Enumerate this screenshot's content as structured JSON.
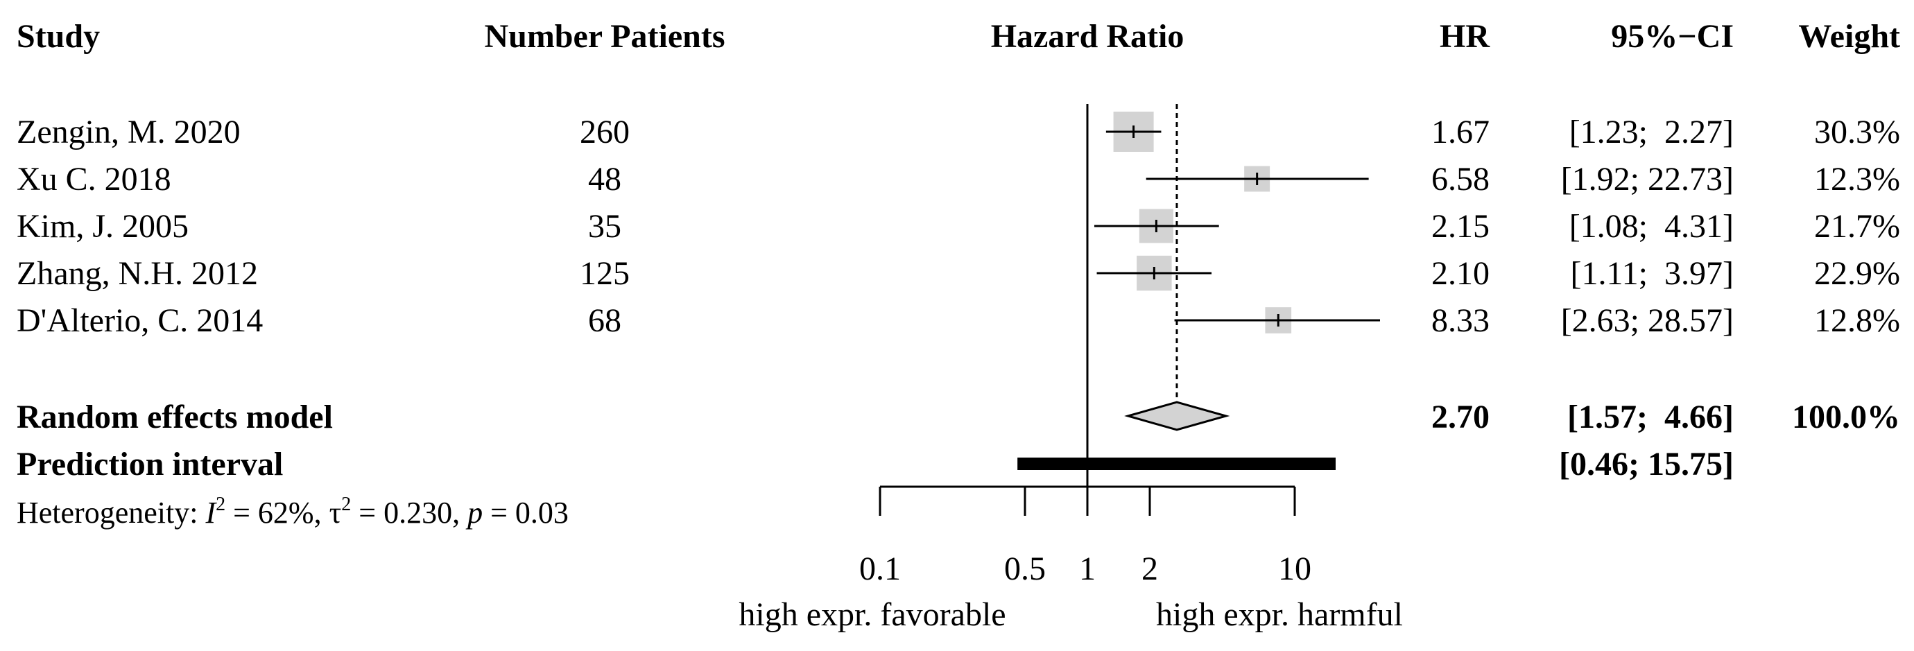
{
  "headers": {
    "study": "Study",
    "patients": "Number Patients",
    "plot": "Hazard Ratio",
    "hr": "HR",
    "ci": "95%−CI",
    "weight": "Weight"
  },
  "studies": [
    {
      "name": "Zengin, M. 2020",
      "patients": "260",
      "hr": 1.67,
      "lower": 1.23,
      "upper": 2.27,
      "hr_text": "1.67",
      "ci_text": "[1.23;  2.27]",
      "weight_text": "30.3%",
      "weight": 30.3
    },
    {
      "name": "Xu C. 2018",
      "patients": "48",
      "hr": 6.58,
      "lower": 1.92,
      "upper": 22.73,
      "hr_text": "6.58",
      "ci_text": "[1.92; 22.73]",
      "weight_text": "12.3%",
      "weight": 12.3
    },
    {
      "name": "Kim, J. 2005",
      "patients": "35",
      "hr": 2.15,
      "lower": 1.08,
      "upper": 4.31,
      "hr_text": "2.15",
      "ci_text": "[1.08;  4.31]",
      "weight_text": "21.7%",
      "weight": 21.7
    },
    {
      "name": "Zhang, N.H. 2012",
      "patients": "125",
      "hr": 2.1,
      "lower": 1.11,
      "upper": 3.97,
      "hr_text": "2.10",
      "ci_text": "[1.11;  3.97]",
      "weight_text": "22.9%",
      "weight": 22.9
    },
    {
      "name": "D'Alterio, C. 2014",
      "patients": "68",
      "hr": 8.33,
      "lower": 2.63,
      "upper": 28.57,
      "hr_text": "8.33",
      "ci_text": "[2.63; 28.57]",
      "weight_text": "12.8%",
      "weight": 12.8
    }
  ],
  "random_effects": {
    "label": "Random effects model",
    "hr": 2.7,
    "lower": 1.57,
    "upper": 4.66,
    "hr_text": "2.70",
    "ci_text": "[1.57;  4.66]",
    "weight_text": "100.0%"
  },
  "prediction_interval": {
    "label": "Prediction interval",
    "lower": 0.46,
    "upper": 15.75,
    "ci_text": "[0.46; 15.75]"
  },
  "heterogeneity": {
    "prefix": "Heterogeneity: ",
    "i2_symbol": "I",
    "i2_sup": "2",
    "i2_value": " = 62%, ",
    "tau_symbol": "τ",
    "tau_sup": "2",
    "tau_value": " = 0.230, ",
    "p_symbol": "p",
    "p_value": " = 0.03"
  },
  "chart_data": {
    "type": "forest",
    "title": "Hazard Ratio",
    "x_scale": "log",
    "xlim": [
      0.1,
      10
    ],
    "ticks": [
      0.1,
      0.5,
      1,
      2,
      10
    ],
    "tick_labels": [
      "0.1",
      "0.5",
      "1",
      "2",
      "10"
    ],
    "null_value": 1,
    "pooled_line": 2.7,
    "xlabel_left": "high expr. favorable",
    "xlabel_right": "high expr. harmful"
  },
  "colors": {
    "box_fill": "#d3d3d3",
    "diamond_fill": "#d3d3d3",
    "line": "#000000"
  }
}
